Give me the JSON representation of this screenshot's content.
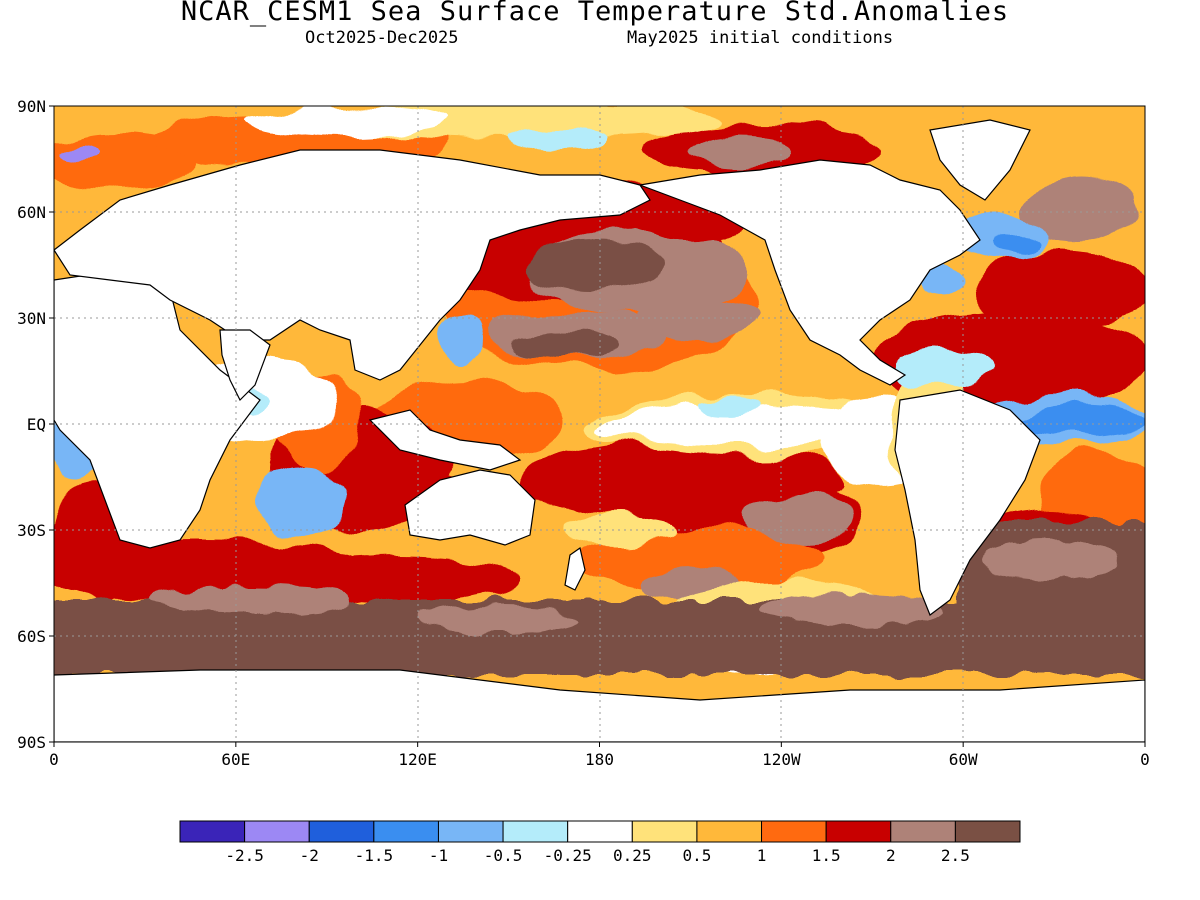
{
  "title": "NCAR_CESM1 Sea Surface Temperature Std.Anomalies",
  "subtitle_period": "Oct2025-Dec2025",
  "subtitle_init": "May2025 initial conditions",
  "lat_ticks": [
    {
      "lat": 90,
      "label": "90N"
    },
    {
      "lat": 60,
      "label": "60N"
    },
    {
      "lat": 30,
      "label": "30N"
    },
    {
      "lat": 0,
      "label": "EQ"
    },
    {
      "lat": -30,
      "label": "30S"
    },
    {
      "lat": -60,
      "label": "60S"
    },
    {
      "lat": -90,
      "label": "90S"
    }
  ],
  "lon_ticks": [
    {
      "lon": 0,
      "label": "0"
    },
    {
      "lon": 60,
      "label": "60E"
    },
    {
      "lon": 120,
      "label": "120E"
    },
    {
      "lon": 180,
      "label": "180"
    },
    {
      "lon": 240,
      "label": "120W"
    },
    {
      "lon": 300,
      "label": "60W"
    },
    {
      "lon": 360,
      "label": "0"
    }
  ],
  "colorbar": {
    "colors": [
      "#3a24b8",
      "#9c88f4",
      "#1f5fdc",
      "#3a8ef0",
      "#78b6f6",
      "#b4ecfa",
      "#ffffff",
      "#ffe27a",
      "#ffb83a",
      "#ff6a10",
      "#c80000",
      "#ae8278",
      "#7a5044"
    ],
    "labels": [
      "-2.5",
      "-2",
      "-1.5",
      "-1",
      "-0.5",
      "-0.25",
      "0.25",
      "0.5",
      "1",
      "1.5",
      "2",
      "2.5"
    ]
  },
  "map_colors": {
    "land": "#ffffff",
    "warm_mild": "#ffe27a",
    "warm_low": "#ffb83a",
    "warm_mid": "#ff6a10",
    "warm_high": "#c80000",
    "warm_very_high": "#ae8278",
    "warm_extreme": "#7a5044",
    "cool_light": "#b4ecfa",
    "cool_mid": "#78b6f6",
    "cool_strong": "#3a8ef0",
    "cool_deep": "#1f5fdc",
    "cool_purple": "#9c88f4"
  }
}
